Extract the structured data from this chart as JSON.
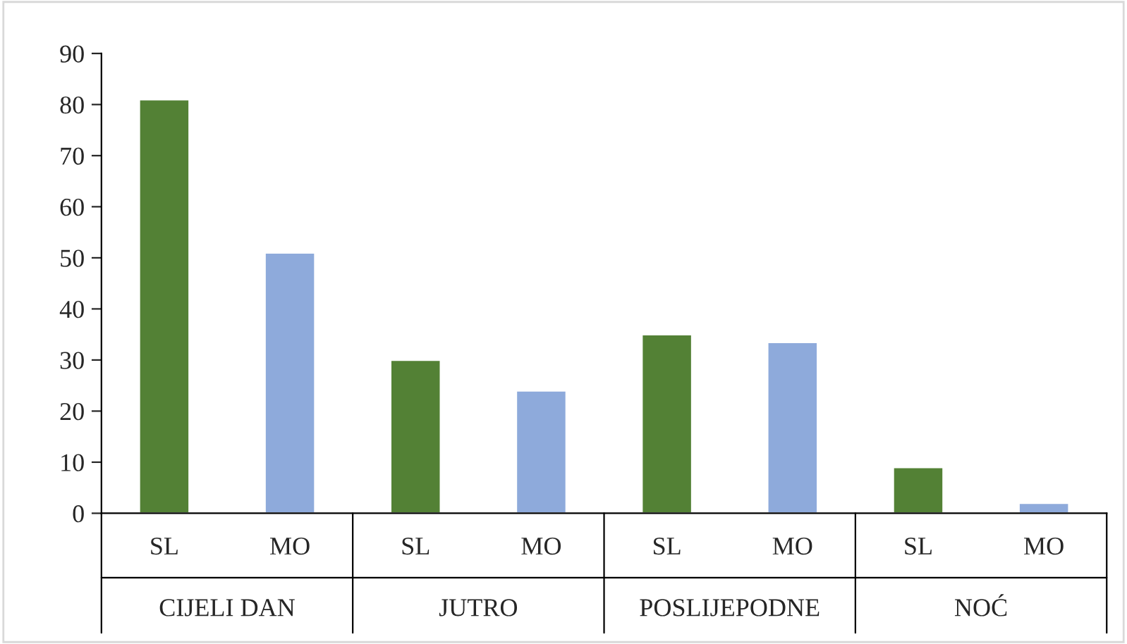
{
  "chart_data": {
    "type": "bar",
    "categories": [
      "SL",
      "MO",
      "SL",
      "MO",
      "SL",
      "MO",
      "SL",
      "MO"
    ],
    "values": [
      81,
      51,
      30,
      24,
      35,
      33.5,
      9,
      2
    ],
    "colors": [
      "#538135",
      "#8eaadb",
      "#538135",
      "#8eaadb",
      "#538135",
      "#8eaadb",
      "#538135",
      "#8eaadb"
    ],
    "annotations": [
      "CIJELI DAN",
      "JUTRO",
      "POSLIJEPODNE",
      "NOĆ"
    ],
    "ylim": [
      0,
      90
    ],
    "yticks": [
      0,
      10,
      20,
      30,
      40,
      50,
      60,
      70,
      80,
      90
    ],
    "grid": false,
    "legend": false
  }
}
